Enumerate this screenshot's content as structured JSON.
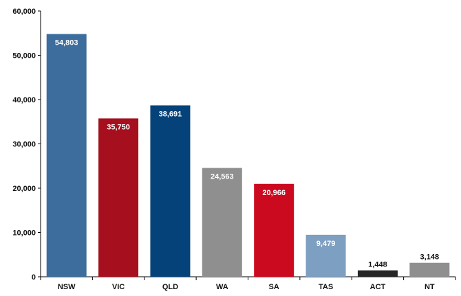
{
  "chart_data": {
    "type": "bar",
    "categories": [
      "NSW",
      "VIC",
      "QLD",
      "WA",
      "SA",
      "TAS",
      "ACT",
      "NT"
    ],
    "values": [
      54803,
      35750,
      38691,
      24563,
      20966,
      9479,
      1448,
      3148
    ],
    "value_labels": [
      "54,803",
      "35,750",
      "38,691",
      "24,563",
      "20,966",
      "9,479",
      "1,448",
      "3,148"
    ],
    "colors": [
      "#3d6d9c",
      "#a50f1e",
      "#06427a",
      "#8f8f8f",
      "#cc0a1f",
      "#7d9fc1",
      "#262626",
      "#8f8f8f"
    ],
    "label_inside": [
      true,
      true,
      true,
      true,
      true,
      true,
      false,
      false
    ],
    "yticks": [
      0,
      10000,
      20000,
      30000,
      40000,
      50000,
      60000
    ],
    "ytick_labels": [
      "0",
      "10,000",
      "20,000",
      "30,000",
      "40,000",
      "50,000",
      "60,000"
    ],
    "ylim": [
      0,
      60000
    ],
    "grid": false,
    "title": "",
    "xlabel": "",
    "ylabel": ""
  }
}
